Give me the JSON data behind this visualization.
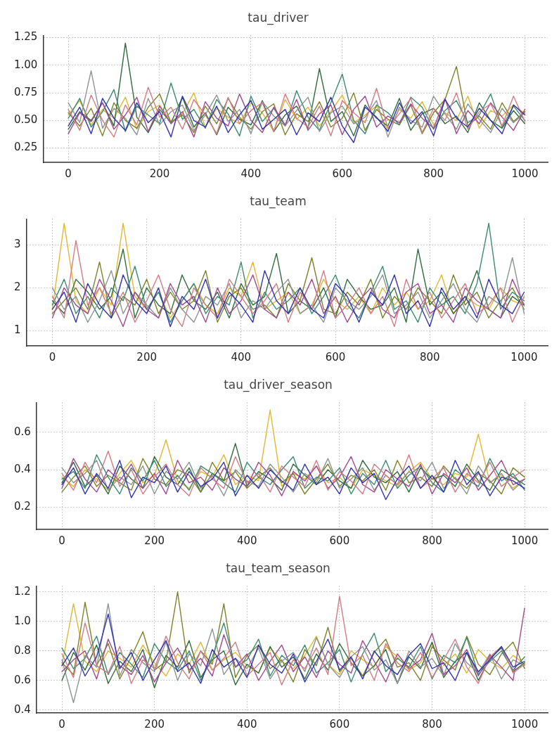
{
  "chart_data": [
    {
      "type": "line",
      "title": "tau_driver",
      "grid": true,
      "xlim": [
        -55,
        1050
      ],
      "xticks": [
        0,
        200,
        400,
        600,
        800,
        1000
      ],
      "ylim": [
        0.12,
        1.27
      ],
      "yticks": [
        {
          "value": 0.25,
          "label": "0.25"
        },
        {
          "value": 0.5,
          "label": "0.50"
        },
        {
          "value": 0.75,
          "label": "0.75"
        },
        {
          "value": 1,
          "label": "1.00"
        },
        {
          "value": 1.25,
          "label": "1.25"
        }
      ],
      "x": [
        0,
        25,
        50,
        75,
        100,
        125,
        150,
        175,
        200,
        225,
        250,
        275,
        300,
        325,
        350,
        375,
        400,
        425,
        450,
        475,
        500,
        525,
        550,
        575,
        600,
        625,
        650,
        675,
        700,
        725,
        750,
        775,
        800,
        825,
        850,
        875,
        900,
        925,
        950,
        975,
        1000
      ],
      "series": [
        {
          "color": "#3333b0",
          "values": [
            0.45,
            0.62,
            0.38,
            0.7,
            0.52,
            0.41,
            0.66,
            0.48,
            0.58,
            0.35,
            0.72,
            0.5,
            0.44,
            0.63,
            0.39,
            0.55,
            0.68,
            0.42,
            0.51,
            0.6,
            0.37,
            0.57,
            0.49,
            0.71,
            0.45,
            0.3,
            0.62,
            0.53,
            0.4,
            0.66,
            0.47,
            0.58,
            0.36,
            0.69,
            0.52,
            0.44,
            0.61,
            0.5,
            0.38,
            0.64,
            0.55
          ]
        },
        {
          "color": "#d47c84",
          "values": [
            0.6,
            0.41,
            0.73,
            0.5,
            0.35,
            0.64,
            0.46,
            0.8,
            0.53,
            0.62,
            0.42,
            0.69,
            0.55,
            0.38,
            0.71,
            0.47,
            0.59,
            0.66,
            0.4,
            0.74,
            0.52,
            0.44,
            0.63,
            0.36,
            0.68,
            0.57,
            0.48,
            0.79,
            0.43,
            0.56,
            0.7,
            0.39,
            0.61,
            0.5,
            0.75,
            0.42,
            0.58,
            0.65,
            0.45,
            0.72,
            0.49
          ]
        },
        {
          "color": "#a24a92",
          "values": [
            0.38,
            0.57,
            0.49,
            0.66,
            0.42,
            0.55,
            0.71,
            0.4,
            0.63,
            0.47,
            0.58,
            0.35,
            0.67,
            0.52,
            0.45,
            0.74,
            0.5,
            0.39,
            0.62,
            0.46,
            0.69,
            0.41,
            0.56,
            0.64,
            0.37,
            0.6,
            0.72,
            0.44,
            0.54,
            0.48,
            0.65,
            0.52,
            0.43,
            0.7,
            0.38,
            0.59,
            0.47,
            0.66,
            0.53,
            0.41,
            0.6
          ]
        },
        {
          "color": "#8c9494",
          "values": [
            0.66,
            0.48,
            0.95,
            0.43,
            0.61,
            0.52,
            0.37,
            0.7,
            0.46,
            0.58,
            0.64,
            0.41,
            0.55,
            0.73,
            0.49,
            0.6,
            0.38,
            0.67,
            0.54,
            0.45,
            0.59,
            0.71,
            0.4,
            0.57,
            0.63,
            0.47,
            0.53,
            0.68,
            0.35,
            0.62,
            0.5,
            0.44,
            0.72,
            0.56,
            0.42,
            0.65,
            0.51,
            0.39,
            0.61,
            0.48,
            0.57
          ]
        },
        {
          "color": "#3b8a72",
          "values": [
            0.52,
            0.7,
            0.44,
            0.58,
            0.78,
            0.4,
            0.63,
            0.55,
            0.47,
            0.84,
            0.51,
            0.6,
            0.43,
            0.69,
            0.56,
            0.36,
            0.72,
            0.49,
            0.61,
            0.45,
            0.77,
            0.53,
            0.41,
            0.66,
            0.92,
            0.5,
            0.38,
            0.64,
            0.57,
            0.46,
            0.71,
            0.62,
            0.42,
            0.59,
            0.68,
            0.48,
            0.55,
            0.74,
            0.44,
            0.63,
            0.5
          ]
        },
        {
          "color": "#7d8229",
          "values": [
            0.57,
            0.45,
            0.61,
            0.36,
            0.66,
            0.5,
            0.43,
            0.62,
            0.74,
            0.48,
            0.55,
            0.39,
            0.63,
            0.47,
            0.7,
            0.53,
            0.42,
            0.58,
            0.65,
            0.37,
            0.56,
            0.49,
            0.67,
            0.44,
            0.52,
            0.75,
            0.41,
            0.6,
            0.51,
            0.46,
            0.64,
            0.38,
            0.57,
            0.69,
            0.99,
            0.45,
            0.54,
            0.42,
            0.66,
            0.49,
            0.58
          ]
        },
        {
          "color": "#2f6b3b",
          "values": [
            0.42,
            0.58,
            0.5,
            0.66,
            0.45,
            1.2,
            0.53,
            0.39,
            0.6,
            0.48,
            0.71,
            0.44,
            0.57,
            0.37,
            0.62,
            0.51,
            0.46,
            0.68,
            0.4,
            0.55,
            0.63,
            0.43,
            0.97,
            0.49,
            0.58,
            0.36,
            0.64,
            0.52,
            0.45,
            0.7,
            0.41,
            0.56,
            0.61,
            0.47,
            0.54,
            0.39,
            0.66,
            0.5,
            0.43,
            0.59,
            0.47
          ]
        },
        {
          "color": "#e2b832",
          "values": [
            0.55,
            0.68,
            0.46,
            0.6,
            0.52,
            0.71,
            0.42,
            0.58,
            0.64,
            0.49,
            0.56,
            0.75,
            0.44,
            0.61,
            0.53,
            0.47,
            0.66,
            0.57,
            0.4,
            0.69,
            0.51,
            0.62,
            0.45,
            0.58,
            0.73,
            0.48,
            0.55,
            0.63,
            0.41,
            0.6,
            0.52,
            0.67,
            0.46,
            0.57,
            0.5,
            0.72,
            0.43,
            0.59,
            0.54,
            0.64,
            0.56
          ]
        }
      ]
    },
    {
      "type": "line",
      "title": "tau_team",
      "grid": true,
      "xlim": [
        -55,
        1050
      ],
      "xticks": [
        0,
        200,
        400,
        600,
        800,
        1000
      ],
      "ylim": [
        0.65,
        3.6
      ],
      "yticks": [
        1,
        2,
        3
      ],
      "x": [
        0,
        25,
        50,
        75,
        100,
        125,
        150,
        175,
        200,
        225,
        250,
        275,
        300,
        325,
        350,
        375,
        400,
        425,
        450,
        475,
        500,
        525,
        550,
        575,
        600,
        625,
        650,
        675,
        700,
        725,
        750,
        775,
        800,
        825,
        850,
        875,
        900,
        925,
        950,
        975,
        1000
      ],
      "series": [
        {
          "color": "#3333b0",
          "values": [
            1.5,
            1.9,
            1.2,
            2.1,
            1.6,
            1.3,
            2.3,
            1.7,
            1.4,
            2.0,
            1.1,
            1.8,
            1.5,
            2.2,
            1.3,
            1.9,
            1.6,
            1.2,
            2.4,
            1.7,
            1.4,
            2.0,
            1.5,
            1.3,
            2.1,
            1.8,
            1.2,
            1.9,
            1.6,
            2.3,
            1.4,
            1.7,
            1.1,
            2.0,
            1.5,
            1.8,
            1.3,
            2.2,
            1.6,
            1.4,
            1.9
          ]
        },
        {
          "color": "#d47c84",
          "values": [
            1.8,
            1.3,
            3.1,
            1.6,
            2.0,
            1.4,
            1.9,
            1.2,
            1.7,
            2.3,
            1.5,
            1.1,
            2.0,
            1.6,
            1.3,
            2.2,
            1.8,
            1.4,
            1.7,
            2.1,
            1.2,
            1.9,
            1.5,
            2.4,
            1.3,
            1.6,
            2.0,
            1.4,
            1.8,
            1.1,
            2.2,
            1.5,
            1.9,
            1.3,
            1.7,
            2.1,
            1.4,
            1.6,
            2.0,
            1.2,
            1.8
          ]
        },
        {
          "color": "#a24a92",
          "values": [
            1.3,
            2.0,
            1.6,
            1.4,
            2.2,
            1.7,
            1.1,
            1.9,
            1.5,
            1.3,
            2.1,
            1.6,
            1.8,
            1.2,
            2.0,
            1.4,
            1.7,
            2.3,
            1.5,
            1.3,
            1.9,
            1.6,
            2.2,
            1.4,
            1.8,
            1.2,
            1.7,
            2.0,
            1.5,
            1.3,
            1.9,
            2.1,
            1.4,
            1.6,
            1.2,
            2.0,
            1.7,
            1.5,
            1.3,
            2.2,
            1.6
          ]
        },
        {
          "color": "#8c9494",
          "values": [
            2.0,
            1.5,
            1.8,
            1.2,
            1.7,
            2.4,
            1.4,
            1.9,
            1.6,
            1.3,
            2.0,
            1.5,
            1.2,
            1.8,
            1.6,
            2.1,
            1.3,
            1.7,
            1.5,
            1.9,
            2.2,
            1.4,
            1.6,
            1.2,
            2.0,
            1.7,
            1.5,
            1.8,
            2.3,
            1.4,
            1.6,
            1.9,
            1.3,
            1.7,
            2.1,
            1.5,
            1.2,
            1.8,
            1.6,
            2.7,
            1.4
          ]
        },
        {
          "color": "#3b8a72",
          "values": [
            1.6,
            2.2,
            1.4,
            1.8,
            1.3,
            2.0,
            1.7,
            2.5,
            1.5,
            1.9,
            1.2,
            1.7,
            2.1,
            1.4,
            1.8,
            1.6,
            2.6,
            1.3,
            1.9,
            1.5,
            1.7,
            2.0,
            1.4,
            1.8,
            2.3,
            1.6,
            1.3,
            1.9,
            2.5,
            1.5,
            1.7,
            1.2,
            2.0,
            1.6,
            1.8,
            1.4,
            2.1,
            3.5,
            1.5,
            1.9,
            1.7
          ]
        },
        {
          "color": "#7d8229",
          "values": [
            1.4,
            1.7,
            2.0,
            1.5,
            2.6,
            1.3,
            1.8,
            1.6,
            2.2,
            1.4,
            1.9,
            1.5,
            1.7,
            2.4,
            1.2,
            1.8,
            2.0,
            1.5,
            1.6,
            1.3,
            2.1,
            1.7,
            2.7,
            1.5,
            1.4,
            1.9,
            1.6,
            2.2,
            1.3,
            1.8,
            1.5,
            2.0,
            1.7,
            1.4,
            2.3,
            1.6,
            1.9,
            1.3,
            1.7,
            2.0,
            1.5
          ]
        },
        {
          "color": "#2f6b3b",
          "values": [
            1.7,
            1.4,
            2.2,
            1.9,
            1.5,
            1.8,
            2.9,
            1.3,
            2.0,
            1.6,
            1.4,
            2.3,
            1.7,
            1.5,
            1.9,
            1.3,
            2.1,
            1.6,
            1.8,
            2.8,
            1.4,
            1.7,
            1.5,
            2.0,
            1.3,
            2.2,
            1.8,
            1.5,
            1.6,
            2.0,
            1.2,
            2.9,
            1.6,
            1.9,
            1.4,
            1.7,
            2.4,
            1.5,
            1.3,
            1.8,
            1.6
          ]
        },
        {
          "color": "#e2b832",
          "values": [
            1.5,
            3.5,
            1.7,
            1.4,
            2.0,
            1.6,
            3.5,
            1.8,
            1.5,
            1.9,
            1.3,
            1.7,
            2.1,
            1.6,
            1.4,
            2.0,
            1.8,
            2.6,
            1.5,
            1.7,
            1.9,
            1.4,
            1.6,
            2.2,
            1.7,
            1.5,
            1.8,
            1.4,
            2.0,
            1.6,
            1.9,
            1.5,
            1.7,
            2.3,
            1.4,
            1.8,
            1.6,
            1.5,
            2.0,
            1.7,
            1.6
          ]
        }
      ]
    },
    {
      "type": "line",
      "title": "tau_driver_season",
      "grid": true,
      "xlim": [
        -55,
        1050
      ],
      "xticks": [
        0,
        200,
        400,
        600,
        800,
        1000
      ],
      "ylim": [
        0.08,
        0.76
      ],
      "yticks": [
        0.2,
        0.4,
        0.6
      ],
      "x": [
        0,
        25,
        50,
        75,
        100,
        125,
        150,
        175,
        200,
        225,
        250,
        275,
        300,
        325,
        350,
        375,
        400,
        425,
        450,
        475,
        500,
        525,
        550,
        575,
        600,
        625,
        650,
        675,
        700,
        725,
        750,
        775,
        800,
        825,
        850,
        875,
        900,
        925,
        950,
        975,
        1000
      ],
      "series": [
        {
          "color": "#3333b0",
          "values": [
            0.32,
            0.41,
            0.27,
            0.38,
            0.3,
            0.45,
            0.25,
            0.36,
            0.33,
            0.42,
            0.28,
            0.39,
            0.31,
            0.35,
            0.44,
            0.26,
            0.37,
            0.3,
            0.4,
            0.34,
            0.29,
            0.43,
            0.32,
            0.36,
            0.27,
            0.41,
            0.33,
            0.38,
            0.24,
            0.35,
            0.42,
            0.3,
            0.37,
            0.28,
            0.45,
            0.32,
            0.39,
            0.26,
            0.36,
            0.34,
            0.3
          ]
        },
        {
          "color": "#d47c84",
          "values": [
            0.38,
            0.29,
            0.44,
            0.33,
            0.5,
            0.31,
            0.4,
            0.27,
            0.36,
            0.43,
            0.32,
            0.26,
            0.41,
            0.35,
            0.3,
            0.47,
            0.33,
            0.38,
            0.28,
            0.42,
            0.36,
            0.31,
            0.45,
            0.29,
            0.39,
            0.34,
            0.27,
            0.43,
            0.37,
            0.32,
            0.48,
            0.3,
            0.35,
            0.41,
            0.28,
            0.38,
            0.33,
            0.44,
            0.31,
            0.36,
            0.4
          ]
        },
        {
          "color": "#a24a92",
          "values": [
            0.3,
            0.46,
            0.35,
            0.28,
            0.4,
            0.34,
            0.43,
            0.3,
            0.38,
            0.27,
            0.45,
            0.33,
            0.36,
            0.29,
            0.41,
            0.35,
            0.31,
            0.44,
            0.37,
            0.26,
            0.39,
            0.34,
            0.42,
            0.3,
            0.36,
            0.47,
            0.32,
            0.28,
            0.4,
            0.35,
            0.31,
            0.43,
            0.27,
            0.38,
            0.33,
            0.41,
            0.29,
            0.37,
            0.45,
            0.32,
            0.35
          ]
        },
        {
          "color": "#8c9494",
          "values": [
            0.41,
            0.33,
            0.38,
            0.45,
            0.29,
            0.36,
            0.32,
            0.42,
            0.27,
            0.39,
            0.35,
            0.44,
            0.3,
            0.37,
            0.26,
            0.4,
            0.34,
            0.31,
            0.43,
            0.36,
            0.28,
            0.38,
            0.33,
            0.46,
            0.3,
            0.35,
            0.41,
            0.29,
            0.37,
            0.32,
            0.39,
            0.34,
            0.44,
            0.3,
            0.36,
            0.27,
            0.42,
            0.33,
            0.38,
            0.29,
            0.35
          ]
        },
        {
          "color": "#3b8a72",
          "values": [
            0.35,
            0.39,
            0.3,
            0.48,
            0.36,
            0.27,
            0.41,
            0.34,
            0.45,
            0.31,
            0.37,
            0.29,
            0.42,
            0.38,
            0.33,
            0.28,
            0.44,
            0.36,
            0.32,
            0.4,
            0.47,
            0.3,
            0.36,
            0.34,
            0.41,
            0.27,
            0.38,
            0.32,
            0.45,
            0.3,
            0.37,
            0.42,
            0.33,
            0.28,
            0.4,
            0.35,
            0.31,
            0.46,
            0.34,
            0.38,
            0.29
          ]
        },
        {
          "color": "#7d8229",
          "values": [
            0.28,
            0.36,
            0.42,
            0.31,
            0.37,
            0.33,
            0.29,
            0.46,
            0.35,
            0.32,
            0.4,
            0.37,
            0.28,
            0.44,
            0.34,
            0.39,
            0.3,
            0.36,
            0.41,
            0.33,
            0.38,
            0.27,
            0.35,
            0.43,
            0.31,
            0.37,
            0.34,
            0.4,
            0.29,
            0.45,
            0.33,
            0.36,
            0.31,
            0.42,
            0.35,
            0.3,
            0.38,
            0.34,
            0.27,
            0.41,
            0.36
          ]
        },
        {
          "color": "#2f6b3b",
          "values": [
            0.33,
            0.44,
            0.31,
            0.37,
            0.27,
            0.42,
            0.35,
            0.3,
            0.47,
            0.36,
            0.32,
            0.41,
            0.28,
            0.38,
            0.34,
            0.54,
            0.31,
            0.39,
            0.35,
            0.29,
            0.43,
            0.37,
            0.32,
            0.4,
            0.34,
            0.3,
            0.45,
            0.36,
            0.33,
            0.39,
            0.28,
            0.41,
            0.35,
            0.37,
            0.31,
            0.43,
            0.34,
            0.29,
            0.4,
            0.36,
            0.32
          ]
        },
        {
          "color": "#e2b832",
          "values": [
            0.36,
            0.31,
            0.4,
            0.35,
            0.29,
            0.38,
            0.45,
            0.33,
            0.37,
            0.56,
            0.34,
            0.3,
            0.39,
            0.36,
            0.48,
            0.32,
            0.37,
            0.34,
            0.72,
            0.31,
            0.38,
            0.35,
            0.42,
            0.33,
            0.36,
            0.3,
            0.4,
            0.37,
            0.34,
            0.31,
            0.39,
            0.44,
            0.35,
            0.32,
            0.38,
            0.36,
            0.59,
            0.33,
            0.37,
            0.3,
            0.35
          ]
        }
      ]
    },
    {
      "type": "line",
      "title": "tau_team_season",
      "grid": true,
      "xlim": [
        -55,
        1050
      ],
      "xticks": [
        0,
        200,
        400,
        600,
        800,
        1000
      ],
      "ylim": [
        0.38,
        1.24
      ],
      "yticks": [
        0.4,
        0.6,
        0.8,
        {
          "value": 1,
          "label": "1.0"
        },
        1.2
      ],
      "x": [
        0,
        25,
        50,
        75,
        100,
        125,
        150,
        175,
        200,
        225,
        250,
        275,
        300,
        325,
        350,
        375,
        400,
        425,
        450,
        475,
        500,
        525,
        550,
        575,
        600,
        625,
        650,
        675,
        700,
        725,
        750,
        775,
        800,
        825,
        850,
        875,
        900,
        925,
        950,
        975,
        1000
      ],
      "series": [
        {
          "color": "#3333b0",
          "values": [
            0.7,
            0.82,
            0.63,
            0.76,
            1.05,
            0.68,
            0.79,
            0.6,
            0.74,
            0.87,
            0.66,
            0.72,
            0.58,
            0.81,
            0.69,
            0.75,
            0.62,
            0.84,
            0.71,
            0.65,
            0.78,
            0.59,
            0.73,
            0.88,
            0.67,
            0.76,
            0.61,
            0.8,
            0.7,
            0.64,
            0.77,
            0.85,
            0.68,
            0.72,
            0.6,
            0.79,
            0.66,
            0.74,
            0.83,
            0.69,
            0.73
          ]
        },
        {
          "color": "#d47c84",
          "values": [
            0.78,
            0.62,
            0.99,
            0.7,
            0.65,
            0.83,
            0.58,
            0.74,
            0.68,
            0.9,
            0.72,
            0.61,
            0.8,
            0.67,
            0.75,
            0.86,
            0.63,
            0.71,
            0.79,
            0.57,
            0.74,
            0.68,
            0.82,
            0.64,
            1.17,
            0.7,
            0.77,
            0.6,
            0.85,
            0.72,
            0.66,
            0.79,
            0.62,
            0.74,
            0.88,
            0.69,
            0.58,
            0.76,
            0.83,
            0.65,
            0.71
          ]
        },
        {
          "color": "#a24a92",
          "values": [
            0.66,
            0.74,
            0.8,
            0.61,
            0.88,
            0.7,
            0.64,
            0.77,
            0.59,
            0.72,
            0.82,
            0.67,
            0.75,
            0.63,
            0.91,
            0.69,
            0.78,
            0.6,
            0.73,
            0.84,
            0.66,
            0.76,
            0.62,
            0.8,
            0.71,
            0.65,
            0.87,
            0.73,
            0.59,
            0.78,
            0.68,
            0.74,
            0.92,
            0.64,
            0.7,
            0.81,
            0.63,
            0.77,
            0.69,
            0.6,
            1.09
          ]
        },
        {
          "color": "#8c9494",
          "values": [
            0.74,
            0.45,
            0.77,
            0.69,
            1.12,
            0.63,
            0.81,
            0.72,
            0.66,
            0.86,
            0.6,
            0.78,
            0.7,
            0.95,
            0.64,
            0.75,
            0.68,
            0.82,
            0.61,
            0.73,
            0.79,
            0.66,
            0.89,
            0.71,
            0.62,
            0.76,
            0.83,
            0.67,
            0.74,
            0.58,
            0.8,
            0.69,
            0.75,
            0.63,
            0.85,
            0.72,
            0.65,
            0.78,
            0.61,
            0.74,
            0.7
          ]
        },
        {
          "color": "#3b8a72",
          "values": [
            0.82,
            0.68,
            0.75,
            0.9,
            0.64,
            0.79,
            0.71,
            0.62,
            0.85,
            0.73,
            0.67,
            0.8,
            0.6,
            0.76,
            0.99,
            0.69,
            0.74,
            0.88,
            0.63,
            0.77,
            0.7,
            0.84,
            0.65,
            0.72,
            0.81,
            0.59,
            0.78,
            0.92,
            0.66,
            0.75,
            0.69,
            0.83,
            0.61,
            0.77,
            0.72,
            0.89,
            0.64,
            0.73,
            0.8,
            0.67,
            0.76
          ]
        },
        {
          "color": "#7d8229",
          "values": [
            0.72,
            0.64,
            1.13,
            0.7,
            0.85,
            0.61,
            0.76,
            0.93,
            0.67,
            0.73,
            1.2,
            0.65,
            0.8,
            0.71,
            1.12,
            0.62,
            0.77,
            0.84,
            0.68,
            0.74,
            0.59,
            0.81,
            0.7,
            0.96,
            0.66,
            0.75,
            0.63,
            0.79,
            0.88,
            0.69,
            0.72,
            0.6,
            0.83,
            0.74,
            0.67,
            0.9,
            0.71,
            0.64,
            0.78,
            0.86,
            0.68
          ]
        },
        {
          "color": "#2f6b3b",
          "values": [
            0.6,
            0.79,
            0.67,
            0.84,
            0.58,
            0.73,
            0.66,
            0.81,
            0.55,
            0.77,
            0.69,
            0.87,
            0.62,
            0.74,
            0.8,
            0.57,
            0.71,
            0.65,
            0.83,
            0.69,
            0.76,
            0.61,
            0.78,
            0.67,
            0.85,
            0.72,
            0.63,
            0.7,
            0.81,
            0.58,
            0.76,
            0.68,
            0.86,
            0.62,
            0.73,
            0.79,
            0.6,
            0.75,
            0.82,
            0.66,
            0.72
          ]
        },
        {
          "color": "#e2b832",
          "values": [
            0.7,
            1.12,
            0.73,
            0.66,
            0.8,
            0.75,
            0.69,
            0.84,
            0.72,
            0.63,
            0.78,
            0.71,
            0.86,
            0.67,
            0.74,
            0.79,
            0.7,
            0.65,
            0.82,
            0.73,
            0.68,
            0.77,
            0.9,
            0.71,
            0.64,
            0.8,
            0.74,
            0.69,
            0.83,
            0.76,
            0.67,
            0.72,
            0.85,
            0.7,
            0.78,
            0.65,
            0.81,
            0.73,
            0.68,
            0.77,
            0.71
          ]
        }
      ]
    }
  ]
}
